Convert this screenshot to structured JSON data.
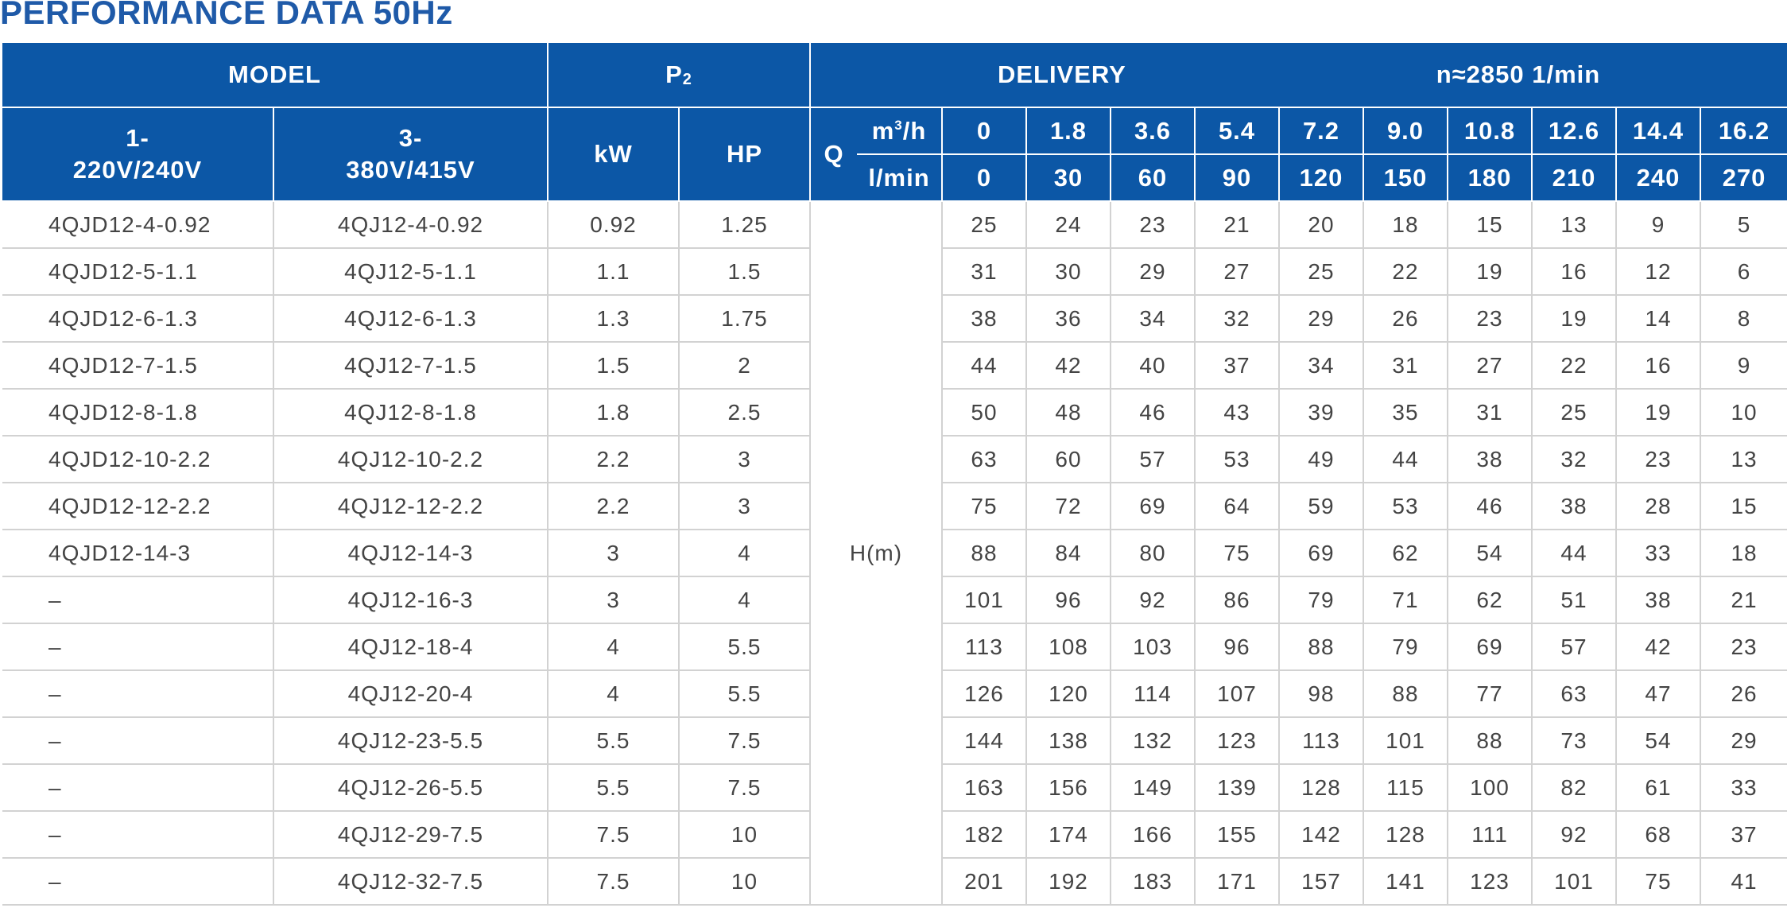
{
  "title": "PERFORMANCE DATA 50Hz",
  "header": {
    "model": "MODEL",
    "p2_main": "P",
    "p2_sub": "2",
    "delivery": "DELIVERY",
    "speed": "n≈2850  1/min",
    "single_phase_line1": "1-",
    "single_phase_line2": "220V/240V",
    "three_phase_line1": "3-",
    "three_phase_line2": "380V/415V",
    "kw": "kW",
    "hp": "HP",
    "q_letter": "Q",
    "unit_m3h_base": "m",
    "unit_m3h_sup": "3",
    "unit_m3h_rest": "/h",
    "unit_lmin": "l/min",
    "flow_m3h": [
      "0",
      "1.8",
      "3.6",
      "5.4",
      "7.2",
      "9.0",
      "10.8",
      "12.6",
      "14.4",
      "16.2"
    ],
    "flow_lmin": [
      "0",
      "30",
      "60",
      "90",
      "120",
      "150",
      "180",
      "210",
      "240",
      "270"
    ]
  },
  "head_label": "H(m)",
  "rows": [
    {
      "single": "4QJD12-4-0.92",
      "three": "4QJ12-4-0.92",
      "kw": "0.92",
      "hp": "1.25",
      "h": [
        "25",
        "24",
        "23",
        "21",
        "20",
        "18",
        "15",
        "13",
        "9",
        "5"
      ]
    },
    {
      "single": "4QJD12-5-1.1",
      "three": "4QJ12-5-1.1",
      "kw": "1.1",
      "hp": "1.5",
      "h": [
        "31",
        "30",
        "29",
        "27",
        "25",
        "22",
        "19",
        "16",
        "12",
        "6"
      ]
    },
    {
      "single": "4QJD12-6-1.3",
      "three": "4QJ12-6-1.3",
      "kw": "1.3",
      "hp": "1.75",
      "h": [
        "38",
        "36",
        "34",
        "32",
        "29",
        "26",
        "23",
        "19",
        "14",
        "8"
      ]
    },
    {
      "single": "4QJD12-7-1.5",
      "three": "4QJ12-7-1.5",
      "kw": "1.5",
      "hp": "2",
      "h": [
        "44",
        "42",
        "40",
        "37",
        "34",
        "31",
        "27",
        "22",
        "16",
        "9"
      ]
    },
    {
      "single": "4QJD12-8-1.8",
      "three": "4QJ12-8-1.8",
      "kw": "1.8",
      "hp": "2.5",
      "h": [
        "50",
        "48",
        "46",
        "43",
        "39",
        "35",
        "31",
        "25",
        "19",
        "10"
      ]
    },
    {
      "single": "4QJD12-10-2.2",
      "three": "4QJ12-10-2.2",
      "kw": "2.2",
      "hp": "3",
      "h": [
        "63",
        "60",
        "57",
        "53",
        "49",
        "44",
        "38",
        "32",
        "23",
        "13"
      ]
    },
    {
      "single": "4QJD12-12-2.2",
      "three": "4QJ12-12-2.2",
      "kw": "2.2",
      "hp": "3",
      "h": [
        "75",
        "72",
        "69",
        "64",
        "59",
        "53",
        "46",
        "38",
        "28",
        "15"
      ]
    },
    {
      "single": "4QJD12-14-3",
      "three": "4QJ12-14-3",
      "kw": "3",
      "hp": "4",
      "h": [
        "88",
        "84",
        "80",
        "75",
        "69",
        "62",
        "54",
        "44",
        "33",
        "18"
      ]
    },
    {
      "single": "–",
      "three": "4QJ12-16-3",
      "kw": "3",
      "hp": "4",
      "h": [
        "101",
        "96",
        "92",
        "86",
        "79",
        "71",
        "62",
        "51",
        "38",
        "21"
      ]
    },
    {
      "single": "–",
      "three": "4QJ12-18-4",
      "kw": "4",
      "hp": "5.5",
      "h": [
        "113",
        "108",
        "103",
        "96",
        "88",
        "79",
        "69",
        "57",
        "42",
        "23"
      ]
    },
    {
      "single": "–",
      "three": "4QJ12-20-4",
      "kw": "4",
      "hp": "5.5",
      "h": [
        "126",
        "120",
        "114",
        "107",
        "98",
        "88",
        "77",
        "63",
        "47",
        "26"
      ]
    },
    {
      "single": "–",
      "three": "4QJ12-23-5.5",
      "kw": "5.5",
      "hp": "7.5",
      "h": [
        "144",
        "138",
        "132",
        "123",
        "113",
        "101",
        "88",
        "73",
        "54",
        "29"
      ]
    },
    {
      "single": "–",
      "three": "4QJ12-26-5.5",
      "kw": "5.5",
      "hp": "7.5",
      "h": [
        "163",
        "156",
        "149",
        "139",
        "128",
        "115",
        "100",
        "82",
        "61",
        "33"
      ]
    },
    {
      "single": "–",
      "three": "4QJ12-29-7.5",
      "kw": "7.5",
      "hp": "10",
      "h": [
        "182",
        "174",
        "166",
        "155",
        "142",
        "128",
        "111",
        "92",
        "68",
        "37"
      ]
    },
    {
      "single": "–",
      "three": "4QJ12-32-7.5",
      "kw": "7.5",
      "hp": "10",
      "h": [
        "201",
        "192",
        "183",
        "171",
        "157",
        "141",
        "123",
        "101",
        "75",
        "41"
      ]
    }
  ]
}
